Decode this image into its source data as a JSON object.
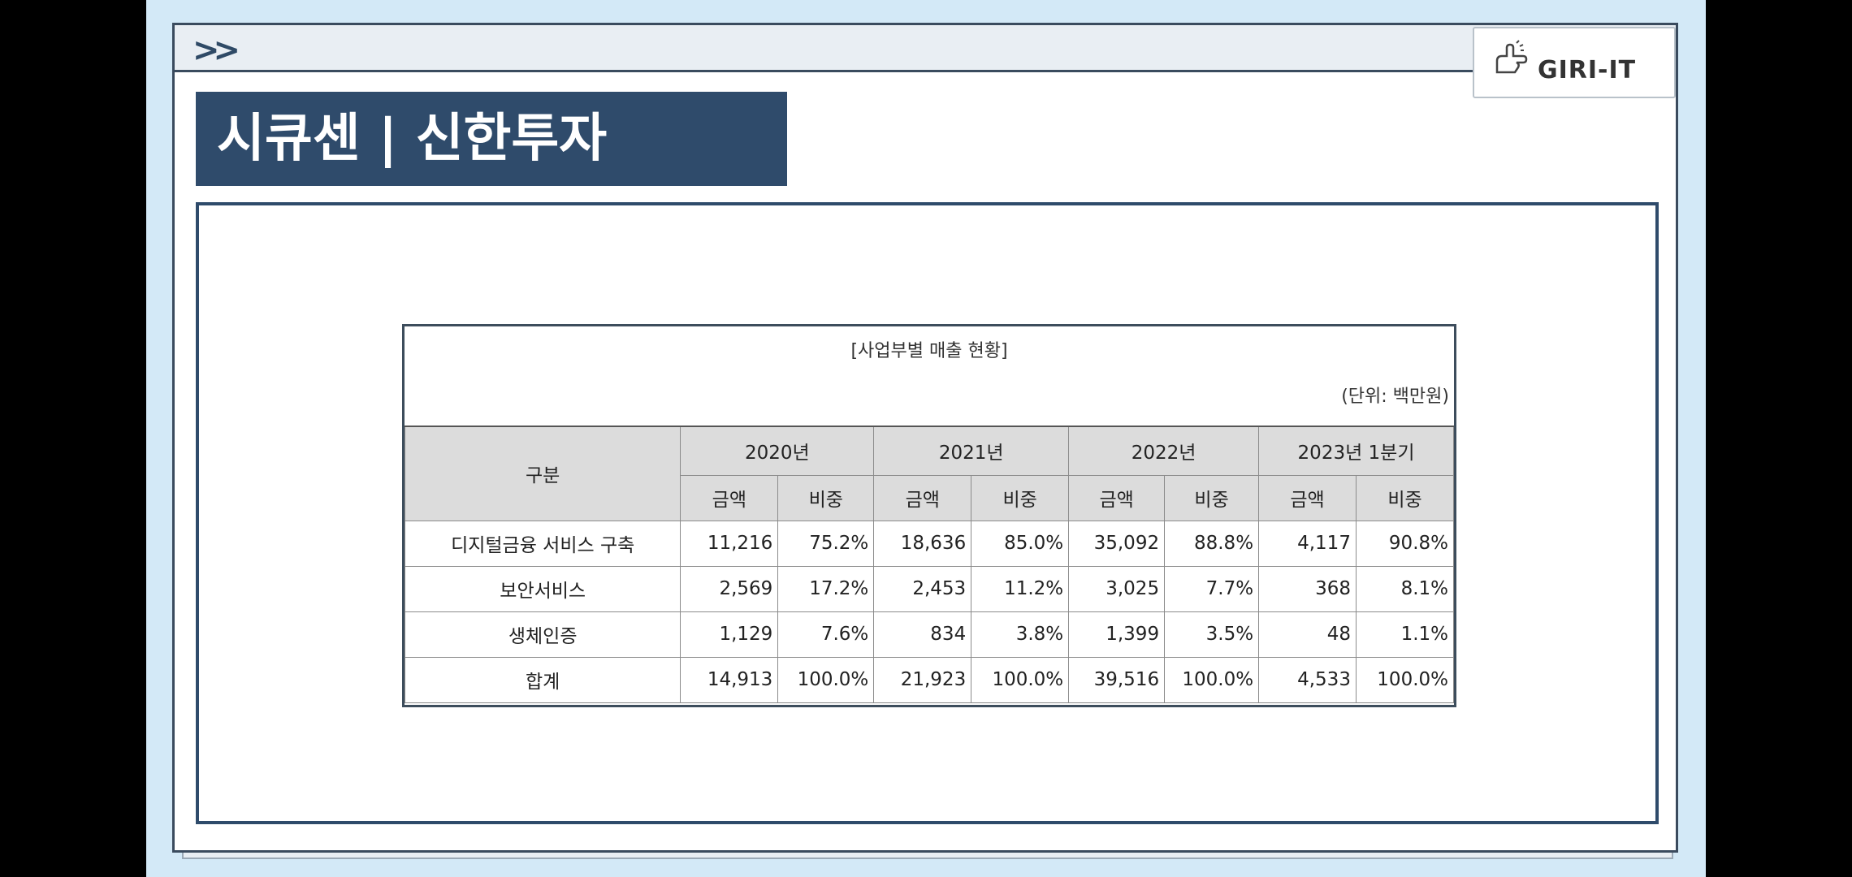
{
  "heading": "시큐센 | 신한투자",
  "logo_text": "GIRI-IT",
  "icons": {
    "forward": "double-chevron-right-icon",
    "close": "close-icon",
    "logo": "hand-pointing-icon"
  },
  "colors": {
    "navy": "#2f4b6b",
    "background": "#d3e9f7"
  },
  "table": {
    "caption": "[사업부별 매출 현황]",
    "unit": "(단위: 백만원)",
    "corner_header": "구분",
    "years": [
      "2020년",
      "2021년",
      "2022년",
      "2023년 1분기"
    ],
    "sub_headers": [
      "금액",
      "비중"
    ],
    "rows": [
      {
        "label": "디지털금융 서비스 구축",
        "cells": [
          "11,216",
          "75.2%",
          "18,636",
          "85.0%",
          "35,092",
          "88.8%",
          "4,117",
          "90.8%"
        ]
      },
      {
        "label": "보안서비스",
        "cells": [
          "2,569",
          "17.2%",
          "2,453",
          "11.2%",
          "3,025",
          "7.7%",
          "368",
          "8.1%"
        ]
      },
      {
        "label": "생체인증",
        "cells": [
          "1,129",
          "7.6%",
          "834",
          "3.8%",
          "1,399",
          "3.5%",
          "48",
          "1.1%"
        ]
      },
      {
        "label": "합계",
        "cells": [
          "14,913",
          "100.0%",
          "21,923",
          "100.0%",
          "39,516",
          "100.0%",
          "4,533",
          "100.0%"
        ]
      }
    ]
  }
}
